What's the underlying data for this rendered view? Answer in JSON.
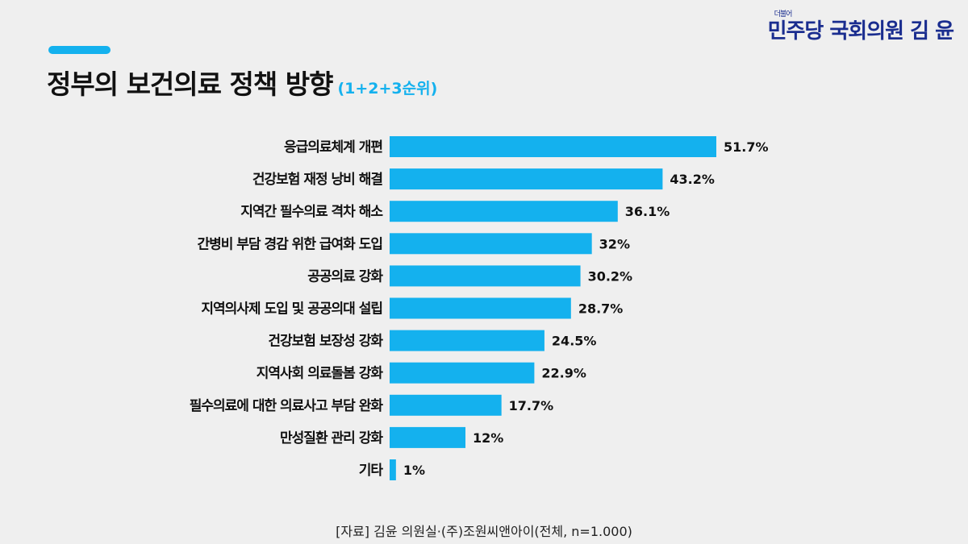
{
  "header": {
    "title": "정부의 보건의료 정책 방향",
    "subtitle": "(1+2+3순위)",
    "logo_text": "민주당 국회의원 김 윤",
    "logo_small": "더불어"
  },
  "source": "[자료] 김윤 의원실·(주)조원씨앤아이(전체, n=1.000)",
  "colors": {
    "bar": "#14b1ee",
    "logo": "#1a2d8f",
    "background": "#efefef"
  },
  "chart_data": {
    "type": "bar",
    "orientation": "horizontal",
    "title": "정부의 보건의료 정책 방향 (1+2+3순위)",
    "xlabel": "",
    "ylabel": "",
    "unit": "%",
    "xlim": [
      0,
      51.7
    ],
    "grid": false,
    "categories": [
      "응급의료체계 개편",
      "건강보험 재정 낭비 해결",
      "지역간 필수의료 격차 해소",
      "간병비 부담 경감 위한 급여화 도입",
      "공공의료 강화",
      "지역의사제 도입 및 공공의대 설립",
      "건강보험 보장성 강화",
      "지역사회 의료돌봄 강화",
      "필수의료에 대한 의료사고 부담 완화",
      "만성질환 관리 강화",
      "기타"
    ],
    "values": [
      51.7,
      43.2,
      36.1,
      32,
      30.2,
      28.7,
      24.5,
      22.9,
      17.7,
      12,
      1
    ],
    "value_labels": [
      "51.7%",
      "43.2%",
      "36.1%",
      "32%",
      "30.2%",
      "28.7%",
      "24.5%",
      "22.9%",
      "17.7%",
      "12%",
      "1%"
    ]
  }
}
